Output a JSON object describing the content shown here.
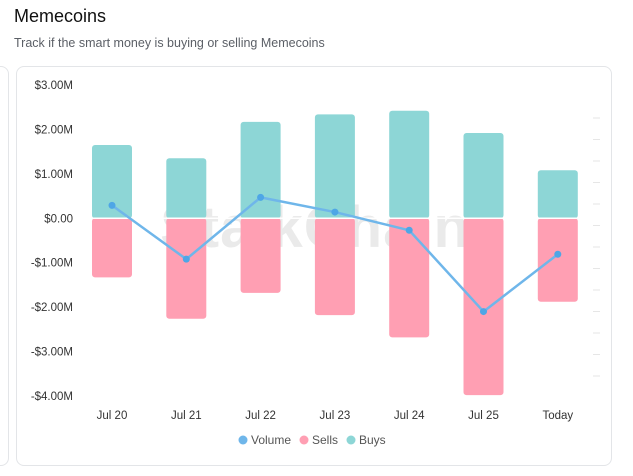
{
  "header": {
    "title": "Memecoins",
    "subtitle": "Track if the smart money is buying or selling Memecoins"
  },
  "watermark": "StalkChain",
  "chart_data": {
    "type": "bar",
    "categories": [
      "Jul 20",
      "Jul 21",
      "Jul 22",
      "Jul 23",
      "Jul 24",
      "Jul 25",
      "Today"
    ],
    "series": [
      {
        "name": "Buys",
        "kind": "bar-stacked",
        "color": "#8dd6d6",
        "values": [
          1.65,
          1.35,
          2.17,
          2.34,
          2.42,
          1.92,
          1.08
        ]
      },
      {
        "name": "Sells",
        "kind": "bar-stacked",
        "color": "#ff9fb3",
        "values": [
          -1.33,
          -2.26,
          -1.68,
          -2.18,
          -2.68,
          -3.98,
          -1.88
        ]
      },
      {
        "name": "Volume",
        "kind": "line",
        "color": "#6fb6ea",
        "values": [
          0.29,
          -0.92,
          0.47,
          0.14,
          -0.27,
          -2.1,
          -0.81
        ]
      }
    ],
    "yunit": "$M",
    "ylim": [
      -4,
      3
    ],
    "yticks": [
      3,
      2,
      1,
      0,
      -1,
      -2,
      -3,
      -4
    ],
    "ytick_labels": [
      "$3.00M",
      "$2.00M",
      "$1.00M",
      "$0.00",
      "-$1.00M",
      "-$2.00M",
      "-$3.00M",
      "-$4.00M"
    ],
    "legend": {
      "position": "bottom",
      "items": [
        {
          "label": "Volume",
          "color": "#6fb6ea"
        },
        {
          "label": "Sells",
          "color": "#ff9fb3"
        },
        {
          "label": "Buys",
          "color": "#8dd6d6"
        }
      ]
    },
    "grid": false
  }
}
